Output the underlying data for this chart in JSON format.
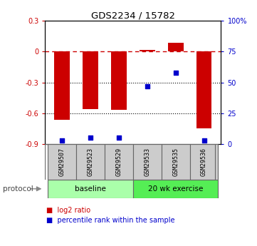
{
  "title": "GDS2234 / 15782",
  "samples": [
    "GSM29507",
    "GSM29523",
    "GSM29529",
    "GSM29533",
    "GSM29535",
    "GSM29536"
  ],
  "log2_ratio": [
    -0.665,
    -0.56,
    -0.57,
    0.018,
    0.085,
    -0.75
  ],
  "percentile_rank": [
    3,
    5,
    5,
    47,
    58,
    3
  ],
  "ylim_left": [
    -0.9,
    0.3
  ],
  "ylim_right": [
    0,
    100
  ],
  "yticks_left": [
    -0.9,
    -0.6,
    -0.3,
    0.0,
    0.3
  ],
  "yticks_right": [
    0,
    25,
    50,
    75,
    100
  ],
  "ytick_labels_left": [
    "-0.9",
    "-0.6",
    "-0.3",
    "0",
    "0.3"
  ],
  "ytick_labels_right": [
    "0",
    "25",
    "50",
    "75",
    "100%"
  ],
  "bar_color": "#cc0000",
  "point_color": "#0000cc",
  "dashed_line_color": "#cc0000",
  "dotted_line_color": "#000000",
  "groups": [
    {
      "label": "baseline",
      "start": 0,
      "end": 3,
      "color": "#aaffaa"
    },
    {
      "label": "20 wk exercise",
      "start": 3,
      "end": 6,
      "color": "#55ee55"
    }
  ],
  "protocol_label": "protocol",
  "legend_items": [
    {
      "label": "log2 ratio",
      "color": "#cc0000"
    },
    {
      "label": "percentile rank within the sample",
      "color": "#0000cc"
    }
  ],
  "background_color": "#ffffff",
  "bar_width": 0.55,
  "sample_box_color": "#cccccc",
  "spine_color": "#666666"
}
